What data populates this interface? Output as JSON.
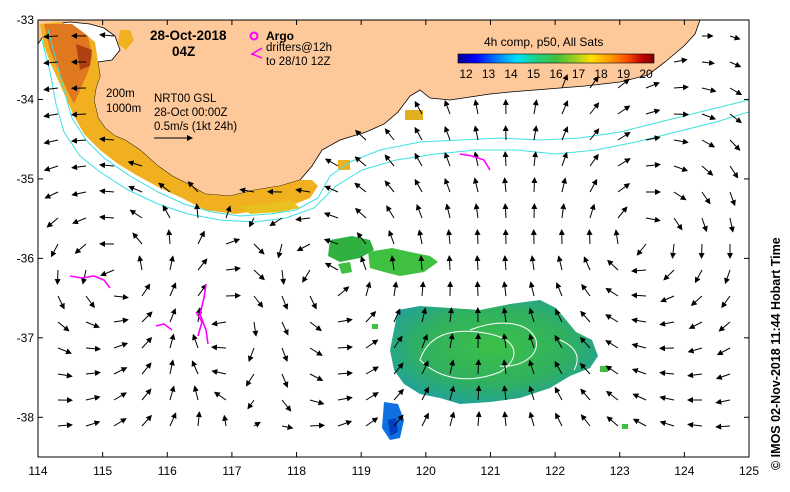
{
  "date_title": "28-Oct-2018",
  "time_title": "04Z",
  "legend": {
    "argo_label": "Argo",
    "drifter_line1": "drifters@12h",
    "drifter_line2": "to 28/10 12Z",
    "argo_color": "#ff00ff",
    "drifter_color": "#ff00ff"
  },
  "isobaths": {
    "label_200": "200m",
    "label_1000": "1000m",
    "color": "#40e0e0"
  },
  "current_info": {
    "product": "NRT00 GSL",
    "date": "28-Oct 00:00Z",
    "scale": "0.5m/s (1kt 24h)"
  },
  "colorbar": {
    "title": "4h comp, p50, All Sats",
    "ticks": [
      "12",
      "13",
      "14",
      "15",
      "16",
      "17",
      "18",
      "19",
      "20"
    ],
    "min": 12,
    "max": 20,
    "colors": [
      "#00008c",
      "#0000ff",
      "#0080ff",
      "#00e0ff",
      "#20d080",
      "#40c040",
      "#a0d020",
      "#ffe000",
      "#ffa000",
      "#ff5000",
      "#c00000",
      "#800000"
    ]
  },
  "axes": {
    "x_ticks": [
      "114",
      "115",
      "116",
      "117",
      "118",
      "119",
      "120",
      "121",
      "122",
      "123",
      "124",
      "125"
    ],
    "y_ticks": [
      "-33",
      "-34",
      "-35",
      "-36",
      "-37",
      "-38"
    ],
    "x_range": [
      114,
      125
    ],
    "y_range": [
      -38.5,
      -33
    ]
  },
  "land_color": "#fdc89a",
  "credit": "© IMOS 02-Nov-2018 11:44 Hobart Time"
}
